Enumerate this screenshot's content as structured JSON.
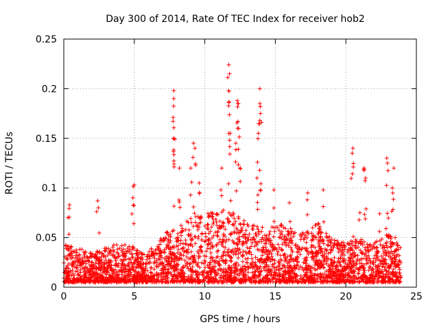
{
  "chart_data": {
    "type": "scatter",
    "title": "Day 300 of 2014, Rate Of TEC Index for receiver hob2",
    "xlabel": "GPS time / hours",
    "ylabel": "ROTI / TECUs",
    "xlim": [
      0,
      25
    ],
    "ylim": [
      0,
      0.25
    ],
    "xticks": [
      "0",
      "5",
      "10",
      "15",
      "20",
      "25"
    ],
    "yticks": [
      "0",
      "0.05",
      "0.1",
      "0.15",
      "0.2",
      "0.25"
    ],
    "grid": true,
    "marker": "+",
    "series_color": "#ff0000",
    "data_extent_hours": [
      0,
      23.9
    ],
    "spikes": [
      {
        "x": 0.4,
        "y": 0.083
      },
      {
        "x": 0.3,
        "y": 0.07
      },
      {
        "x": 2.4,
        "y": 0.087
      },
      {
        "x": 2.45,
        "y": 0.08
      },
      {
        "x": 5.0,
        "y": 0.103
      },
      {
        "x": 4.9,
        "y": 0.09
      },
      {
        "x": 7.8,
        "y": 0.198
      },
      {
        "x": 7.8,
        "y": 0.19
      },
      {
        "x": 7.75,
        "y": 0.167
      },
      {
        "x": 7.8,
        "y": 0.15
      },
      {
        "x": 8.2,
        "y": 0.12
      },
      {
        "x": 9.2,
        "y": 0.145
      },
      {
        "x": 9.3,
        "y": 0.14
      },
      {
        "x": 9.0,
        "y": 0.12
      },
      {
        "x": 9.6,
        "y": 0.105
      },
      {
        "x": 11.7,
        "y": 0.224
      },
      {
        "x": 11.75,
        "y": 0.215
      },
      {
        "x": 11.7,
        "y": 0.186
      },
      {
        "x": 11.8,
        "y": 0.155
      },
      {
        "x": 12.3,
        "y": 0.188
      },
      {
        "x": 12.35,
        "y": 0.185
      },
      {
        "x": 12.4,
        "y": 0.16
      },
      {
        "x": 12.2,
        "y": 0.145
      },
      {
        "x": 12.5,
        "y": 0.12
      },
      {
        "x": 11.2,
        "y": 0.12
      },
      {
        "x": 13.9,
        "y": 0.2
      },
      {
        "x": 13.9,
        "y": 0.185
      },
      {
        "x": 13.95,
        "y": 0.175
      },
      {
        "x": 13.8,
        "y": 0.155
      },
      {
        "x": 13.7,
        "y": 0.11
      },
      {
        "x": 14.9,
        "y": 0.098
      },
      {
        "x": 16.0,
        "y": 0.085
      },
      {
        "x": 17.3,
        "y": 0.095
      },
      {
        "x": 18.4,
        "y": 0.098
      },
      {
        "x": 20.5,
        "y": 0.14
      },
      {
        "x": 20.45,
        "y": 0.135
      },
      {
        "x": 21.3,
        "y": 0.12
      },
      {
        "x": 21.4,
        "y": 0.11
      },
      {
        "x": 22.9,
        "y": 0.13
      },
      {
        "x": 22.95,
        "y": 0.125
      },
      {
        "x": 23.4,
        "y": 0.12
      },
      {
        "x": 23.3,
        "y": 0.1
      },
      {
        "x": 21.0,
        "y": 0.075
      },
      {
        "x": 22.4,
        "y": 0.074
      },
      {
        "x": 23.5,
        "y": 0.05
      }
    ],
    "activity_envelope": [
      {
        "x": 0,
        "y": 0.045
      },
      {
        "x": 1,
        "y": 0.04
      },
      {
        "x": 2,
        "y": 0.035
      },
      {
        "x": 3,
        "y": 0.04
      },
      {
        "x": 4,
        "y": 0.045
      },
      {
        "x": 5,
        "y": 0.04
      },
      {
        "x": 6,
        "y": 0.035
      },
      {
        "x": 7,
        "y": 0.055
      },
      {
        "x": 8,
        "y": 0.06
      },
      {
        "x": 9,
        "y": 0.07
      },
      {
        "x": 10,
        "y": 0.075
      },
      {
        "x": 11,
        "y": 0.08
      },
      {
        "x": 12,
        "y": 0.075
      },
      {
        "x": 13,
        "y": 0.065
      },
      {
        "x": 14,
        "y": 0.06
      },
      {
        "x": 15,
        "y": 0.065
      },
      {
        "x": 16,
        "y": 0.06
      },
      {
        "x": 17,
        "y": 0.055
      },
      {
        "x": 18,
        "y": 0.065
      },
      {
        "x": 19,
        "y": 0.05
      },
      {
        "x": 20,
        "y": 0.045
      },
      {
        "x": 21,
        "y": 0.05
      },
      {
        "x": 22,
        "y": 0.045
      },
      {
        "x": 23,
        "y": 0.055
      },
      {
        "x": 23.9,
        "y": 0.04
      }
    ]
  }
}
